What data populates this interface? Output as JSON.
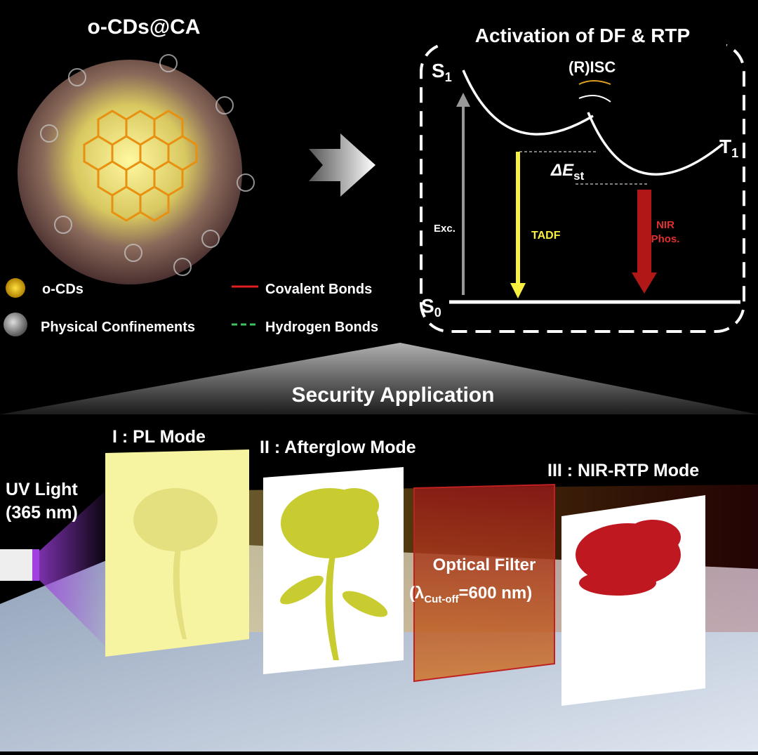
{
  "top_left": {
    "title": "o-CDs@CA",
    "legend": [
      "o-CDs",
      "Covalent Bonds",
      "Physical Confinements",
      "Hydrogen Bonds"
    ]
  },
  "top_right": {
    "title": "Activation of DF & RTP",
    "s1": {
      "symbol": "S",
      "sub": "1"
    },
    "t1": {
      "symbol": "T",
      "sub": "1"
    },
    "s0": {
      "symbol": "S",
      "sub": "0"
    },
    "isc": "(R)ISC",
    "delta_e": {
      "symbol": "ΔE",
      "sub": "st"
    },
    "excitation": "Exc.",
    "tadf": "TADF",
    "nir": [
      "NIR",
      "Phos."
    ]
  },
  "bottom": {
    "title": "Security Application",
    "uv_light": [
      "UV Light",
      "(365 nm)"
    ],
    "modes": [
      "I : PL Mode",
      "II : Afterglow Mode",
      "III : NIR-RTP Mode"
    ],
    "filter": {
      "line1": "Optical Filter",
      "prefix": "(λ",
      "sub": "Cut-off",
      "suffix": "=600 nm)"
    }
  }
}
